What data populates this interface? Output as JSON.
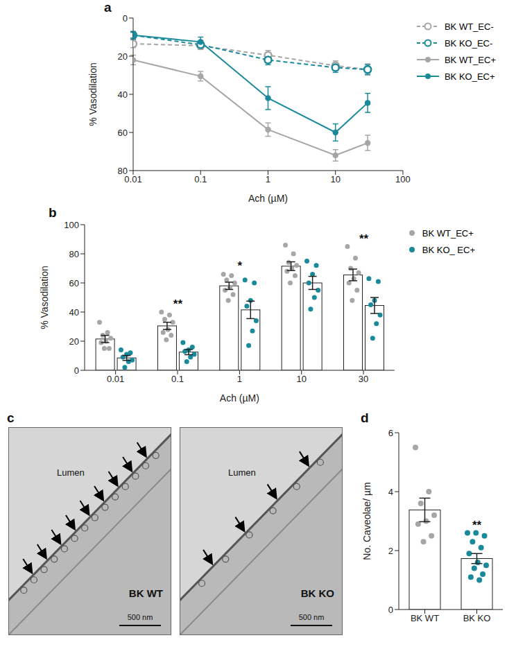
{
  "chart_data": [
    {
      "panel": "a",
      "type": "line",
      "x_label": "Ach (µM)",
      "y_label": "% Vasodilation",
      "x": [
        0.01,
        0.1,
        1,
        10,
        30
      ],
      "xlim": [
        0.01,
        100
      ],
      "xticks": [
        0.01,
        0.1,
        1,
        10,
        100
      ],
      "log": "x",
      "ylim": [
        80,
        0
      ],
      "yticks": [
        0,
        20,
        40,
        60,
        80
      ],
      "grid": false,
      "legend": "right",
      "series": [
        {
          "name": "BK WT_EC-",
          "color": "#a6a6a6",
          "line_style": "dashed",
          "marker": "open_circle",
          "values": [
            13.5,
            14.5,
            19.5,
            25,
            27
          ],
          "errors": [
            2,
            2,
            2.5,
            2.5,
            3
          ]
        },
        {
          "name": "BK KO_EC-",
          "color": "#1a8a9a",
          "line_style": "dashed",
          "marker": "open_circle",
          "values": [
            9,
            14,
            22,
            26,
            27
          ],
          "errors": [
            1.5,
            2,
            2.5,
            2.5,
            2.5
          ]
        },
        {
          "name": "BK WT_EC+",
          "color": "#a6a6a6",
          "line_style": "solid",
          "marker": "circle",
          "values": [
            22,
            30.5,
            58.5,
            72,
            65.5
          ],
          "errors": [
            2.5,
            2.5,
            3.5,
            3,
            4
          ]
        },
        {
          "name": "BK KO_EC+",
          "color": "#1a8a9a",
          "line_style": "solid",
          "marker": "circle",
          "values": [
            9,
            12.5,
            42,
            60,
            44.5
          ],
          "errors": [
            2,
            2.5,
            6,
            4.5,
            5
          ]
        }
      ]
    },
    {
      "panel": "b",
      "type": "bar",
      "x_label": "Ach (µM)",
      "y_label": "% Vasodilation",
      "categories": [
        "0.01",
        "0.1",
        "1",
        "10",
        "30"
      ],
      "ylim": [
        0,
        100
      ],
      "yticks": [
        0,
        20,
        40,
        60,
        80,
        100
      ],
      "grid": false,
      "legend": "right",
      "marker": "circle",
      "series": [
        {
          "name": "BK WT_EC+",
          "color": "#a6a6a6",
          "values": [
            21.5,
            30.5,
            58,
            71.5,
            65.5
          ],
          "errors": [
            2.5,
            2.5,
            2.5,
            3,
            4
          ],
          "points": [
            [
              33,
              26,
              24,
              22,
              20,
              19,
              15,
              15
            ],
            [
              40,
              38,
              35,
              33,
              28,
              26,
              24,
              21
            ],
            [
              66,
              65,
              62,
              60,
              57,
              55,
              52,
              48
            ],
            [
              86,
              80,
              74,
              72,
              70,
              68,
              65,
              60
            ],
            [
              85,
              77,
              70,
              67,
              63,
              60,
              55,
              48
            ]
          ]
        },
        {
          "name": "BK KO_ EC+",
          "color": "#1a8a9a",
          "values": [
            8.5,
            12.5,
            41.5,
            60,
            44.5
          ],
          "errors": [
            1.7,
            1.8,
            6,
            4.5,
            5.5
          ],
          "points": [
            [
              14,
              12,
              11,
              9,
              7,
              6,
              2
            ],
            [
              19,
              16,
              14,
              13,
              11,
              9,
              6
            ],
            [
              62,
              60,
              48,
              44,
              34,
              27,
              17
            ],
            [
              75,
              72,
              66,
              60,
              55,
              50,
              42
            ],
            [
              63,
              61,
              48,
              45,
              38,
              32,
              22
            ]
          ]
        }
      ],
      "annotations": [
        {
          "category": "0.1",
          "text": "**"
        },
        {
          "category": "1",
          "text": "*"
        },
        {
          "category": "30",
          "text": "**"
        }
      ]
    },
    {
      "panel": "d",
      "type": "bar",
      "y_label": "No. Caveolae/ µm",
      "categories": [
        "BK WT",
        "BK KO"
      ],
      "ylim": [
        0,
        6
      ],
      "yticks": [
        0,
        2,
        4,
        6
      ],
      "grid": false,
      "marker": "circle",
      "values": [
        3.38,
        1.73
      ],
      "errors": [
        0.4,
        0.17
      ],
      "colors": [
        "#a6a6a6",
        "#1a8a9a"
      ],
      "points": [
        [
          5.5,
          4.0,
          3.6,
          3.2,
          3.0,
          2.9,
          2.5,
          2.3
        ],
        [
          2.6,
          2.6,
          2.5,
          2.3,
          2.1,
          1.9,
          1.6,
          1.5,
          1.4,
          1.2,
          1.1,
          1.0
        ]
      ],
      "annotations": [
        {
          "category": "BK KO",
          "text": "**"
        }
      ]
    }
  ],
  "micrographs": {
    "panel": "c",
    "images": [
      {
        "region": "Lumen",
        "label": "BK WT",
        "scale_bar": "500 nm"
      },
      {
        "region": "Lumen",
        "label": "BK KO",
        "scale_bar": "500 nm"
      }
    ]
  }
}
